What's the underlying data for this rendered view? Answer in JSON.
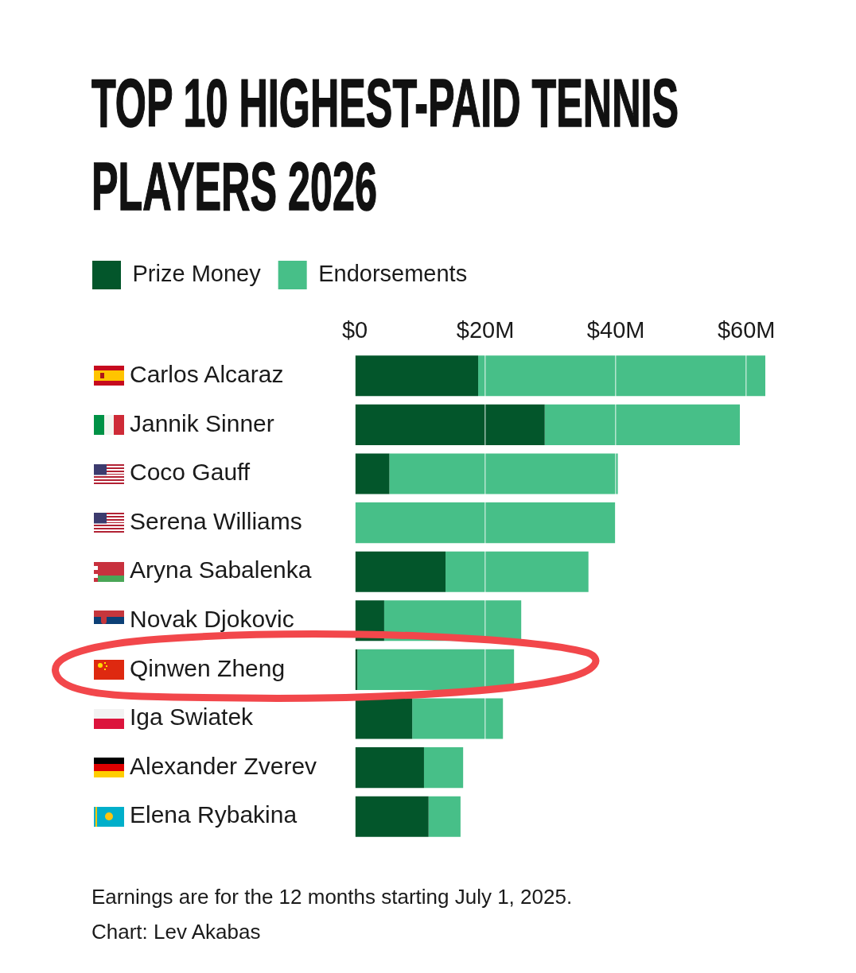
{
  "chart_data": {
    "type": "bar",
    "orientation": "horizontal",
    "stacked": true,
    "title": "TOP 10 HIGHEST-PAID TENNIS PLAYERS 2026",
    "categories": [
      "Carlos Alcaraz",
      "Jannik Sinner",
      "Coco Gauff",
      "Serena Williams",
      "Aryna Sabalenka",
      "Novak Djokovic",
      "Qinwen Zheng",
      "Iga Swiatek",
      "Alexander Zverev",
      "Elena Rybakina"
    ],
    "series": [
      {
        "name": "Prize Money",
        "color": "#03562b",
        "values": [
          18.9,
          29.1,
          5.3,
          0,
          13.9,
          4.5,
          0.4,
          8.8,
          10.6,
          11.3
        ]
      },
      {
        "name": "Endorsements",
        "color": "#47bf88",
        "values": [
          44.0,
          29.9,
          35.0,
          39.9,
          21.9,
          21.0,
          24.0,
          13.9,
          6.0,
          4.9
        ]
      }
    ],
    "xlim": [
      0,
      62.9
    ],
    "xticks": [
      {
        "value": 0,
        "label": "$0"
      },
      {
        "value": 20,
        "label": "$20M"
      },
      {
        "value": 40,
        "label": "$40M"
      },
      {
        "value": 60,
        "label": "$60M"
      }
    ],
    "grid": "x",
    "legend": "top left",
    "annotations": [
      "Earnings are for the 12 months starting July 1, 2025.",
      "Chart: Lev Akabas"
    ]
  }
}
